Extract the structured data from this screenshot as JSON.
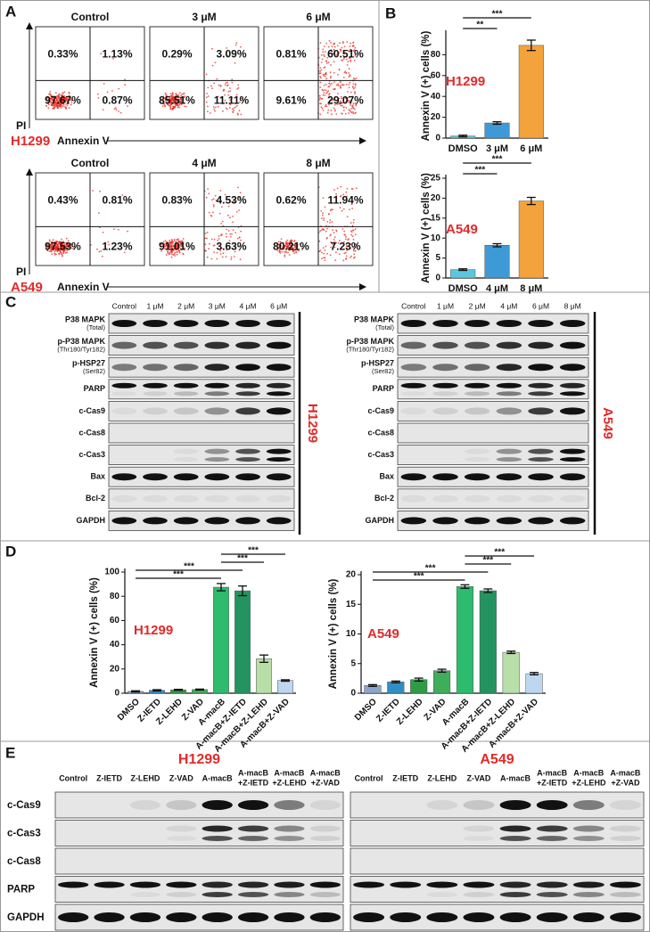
{
  "panel_labels": [
    "A",
    "B",
    "C",
    "D",
    "E"
  ],
  "flow_cytometry": {
    "rows": [
      {
        "cell_line": "H1299",
        "x_axis": "Annexin V",
        "y_axis": "PI",
        "plots": [
          {
            "title": "Control",
            "quadrants": [
              "0.33%",
              "1.13%",
              "97.67%",
              "0.87%"
            ]
          },
          {
            "title": "3 μM",
            "quadrants": [
              "0.29%",
              "3.09%",
              "85.51%",
              "11.11%"
            ]
          },
          {
            "title": "6 μM",
            "quadrants": [
              "0.81%",
              "60.51%",
              "9.61%",
              "29.07%"
            ]
          }
        ]
      },
      {
        "cell_line": "A549",
        "x_axis": "Annexin V",
        "y_axis": "PI",
        "plots": [
          {
            "title": "Control",
            "quadrants": [
              "0.43%",
              "0.81%",
              "97.53%",
              "1.23%"
            ]
          },
          {
            "title": "4 μM",
            "quadrants": [
              "0.83%",
              "4.53%",
              "91.01%",
              "3.63%"
            ]
          },
          {
            "title": "8 μM",
            "quadrants": [
              "0.62%",
              "11.94%",
              "80.21%",
              "7.23%"
            ]
          }
        ]
      }
    ]
  },
  "chart_data": [
    {
      "type": "bar",
      "cell_line": "H1299",
      "y_label": "Annexin V (+) cells (%)",
      "categories": [
        "DMSO",
        "3 μM",
        "6 μM"
      ],
      "values": [
        2,
        14.5,
        89
      ],
      "errors": [
        0.8,
        1.2,
        5
      ],
      "colors": [
        "#5cc6dc",
        "#3d9ad6",
        "#f4a23c"
      ],
      "ylim": [
        0,
        100
      ],
      "yticks": [
        0,
        20,
        40,
        60,
        80
      ],
      "comparisons": [
        {
          "between": [
            "DMSO",
            "6 μM"
          ],
          "label": "***"
        },
        {
          "between": [
            "DMSO",
            "3 μM"
          ],
          "label": "**"
        }
      ]
    },
    {
      "type": "bar",
      "cell_line": "A549",
      "y_label": "Annexin V (+) cells (%)",
      "categories": [
        "DMSO",
        "4 μM",
        "8 μM"
      ],
      "values": [
        2.1,
        8.2,
        19.3
      ],
      "errors": [
        0.2,
        0.4,
        0.9
      ],
      "colors": [
        "#5cc6dc",
        "#3d9ad6",
        "#f4a23c"
      ],
      "ylim": [
        0,
        25
      ],
      "yticks": [
        0,
        5,
        10,
        15,
        20,
        25
      ],
      "comparisons": [
        {
          "between": [
            "DMSO",
            "8 μM"
          ],
          "label": "***"
        },
        {
          "between": [
            "DMSO",
            "4 μM"
          ],
          "label": "***"
        }
      ]
    },
    {
      "type": "bar",
      "cell_line": "H1299",
      "y_label": "Annexin V (+) cells (%)",
      "categories": [
        "DMSO",
        "Z-IETD",
        "Z-LEHD",
        "Z-VAD",
        "A-macB",
        "A-macB+Z-IETD",
        "A-macB+Z-LEHD",
        "A-macB+Z-VAD"
      ],
      "values": [
        1.5,
        2.4,
        2.8,
        3,
        87.5,
        84.5,
        28.5,
        10.5
      ],
      "errors": [
        0.5,
        0.5,
        0.4,
        0.4,
        3,
        4,
        3,
        0.6
      ],
      "colors": [
        "#8aa7c9",
        "#2f8fc4",
        "#2f9b47",
        "#3fae5a",
        "#2dbb6e",
        "#239460",
        "#b8dfa8",
        "#bcd7ef"
      ],
      "ylim": [
        0,
        100
      ],
      "yticks": [
        0,
        20,
        40,
        60,
        80,
        100
      ],
      "comparisons": [
        {
          "between": [
            "A-macB",
            "A-macB+Z-VAD"
          ],
          "label": "***"
        },
        {
          "between": [
            "A-macB",
            "A-macB+Z-LEHD"
          ],
          "label": "***"
        },
        {
          "between": [
            "DMSO",
            "A-macB+Z-IETD"
          ],
          "label": "***"
        },
        {
          "between": [
            "DMSO",
            "A-macB"
          ],
          "label": "***"
        }
      ]
    },
    {
      "type": "bar",
      "cell_line": "A549",
      "y_label": "Annexin V (+) cells (%)",
      "categories": [
        "DMSO",
        "Z-IETD",
        "Z-LEHD",
        "Z-VAD",
        "A-macB",
        "A-macB+Z-IETD",
        "A-macB+Z-LEHD",
        "A-macB+Z-VAD"
      ],
      "values": [
        1.3,
        1.9,
        2.3,
        3.8,
        18,
        17.3,
        6.9,
        3.3
      ],
      "errors": [
        0.15,
        0.15,
        0.25,
        0.25,
        0.3,
        0.3,
        0.2,
        0.2
      ],
      "colors": [
        "#8aa7c9",
        "#2f8fc4",
        "#2f9b47",
        "#3fae5a",
        "#2dbb6e",
        "#239460",
        "#b8dfa8",
        "#bcd7ef"
      ],
      "ylim": [
        0,
        20
      ],
      "yticks": [
        0,
        5,
        10,
        15,
        20
      ],
      "comparisons": [
        {
          "between": [
            "A-macB",
            "A-macB+Z-VAD"
          ],
          "label": "***"
        },
        {
          "between": [
            "A-macB",
            "A-macB+Z-LEHD"
          ],
          "label": "***"
        },
        {
          "between": [
            "DMSO",
            "A-macB+Z-IETD"
          ],
          "label": "***"
        },
        {
          "between": [
            "DMSO",
            "A-macB"
          ],
          "label": "***"
        }
      ]
    }
  ],
  "western_blot_c": {
    "rows": [
      [
        "P38 MAPK",
        "(Total)"
      ],
      [
        "p-P38 MAPK",
        "(Thr180/Tyr182)"
      ],
      [
        "p-HSP27",
        "(Ser82)"
      ],
      [
        "PARP"
      ],
      [
        "c-Cas9"
      ],
      [
        "c-Cas8"
      ],
      [
        "c-Cas3"
      ],
      [
        "Bax"
      ],
      [
        "Bcl-2"
      ],
      [
        "GAPDH"
      ]
    ],
    "blots": [
      {
        "cell_line": "H1299",
        "lanes": [
          "Control",
          "1 μM",
          "2 μM",
          "3 μM",
          "4 μM",
          "6 μM"
        ]
      },
      {
        "cell_line": "A549",
        "lanes": [
          "Control",
          "1 μM",
          "2 μM",
          "4 μM",
          "6 μM",
          "8 μM"
        ]
      }
    ]
  },
  "western_blot_e": {
    "lanes": [
      [
        "Control"
      ],
      [
        "Z-IETD"
      ],
      [
        "Z-LEHD"
      ],
      [
        "Z-VAD"
      ],
      [
        "A-macB"
      ],
      [
        "A-macB",
        "+Z-IETD"
      ],
      [
        "A-macB",
        "+Z-LEHD"
      ],
      [
        "A-macB",
        "+Z-VAD"
      ]
    ],
    "rows": [
      "c-Cas9",
      "c-Cas3",
      "c-Cas8",
      "PARP",
      "GAPDH"
    ],
    "blots": [
      {
        "cell_line": "H1299"
      },
      {
        "cell_line": "A549"
      }
    ]
  }
}
